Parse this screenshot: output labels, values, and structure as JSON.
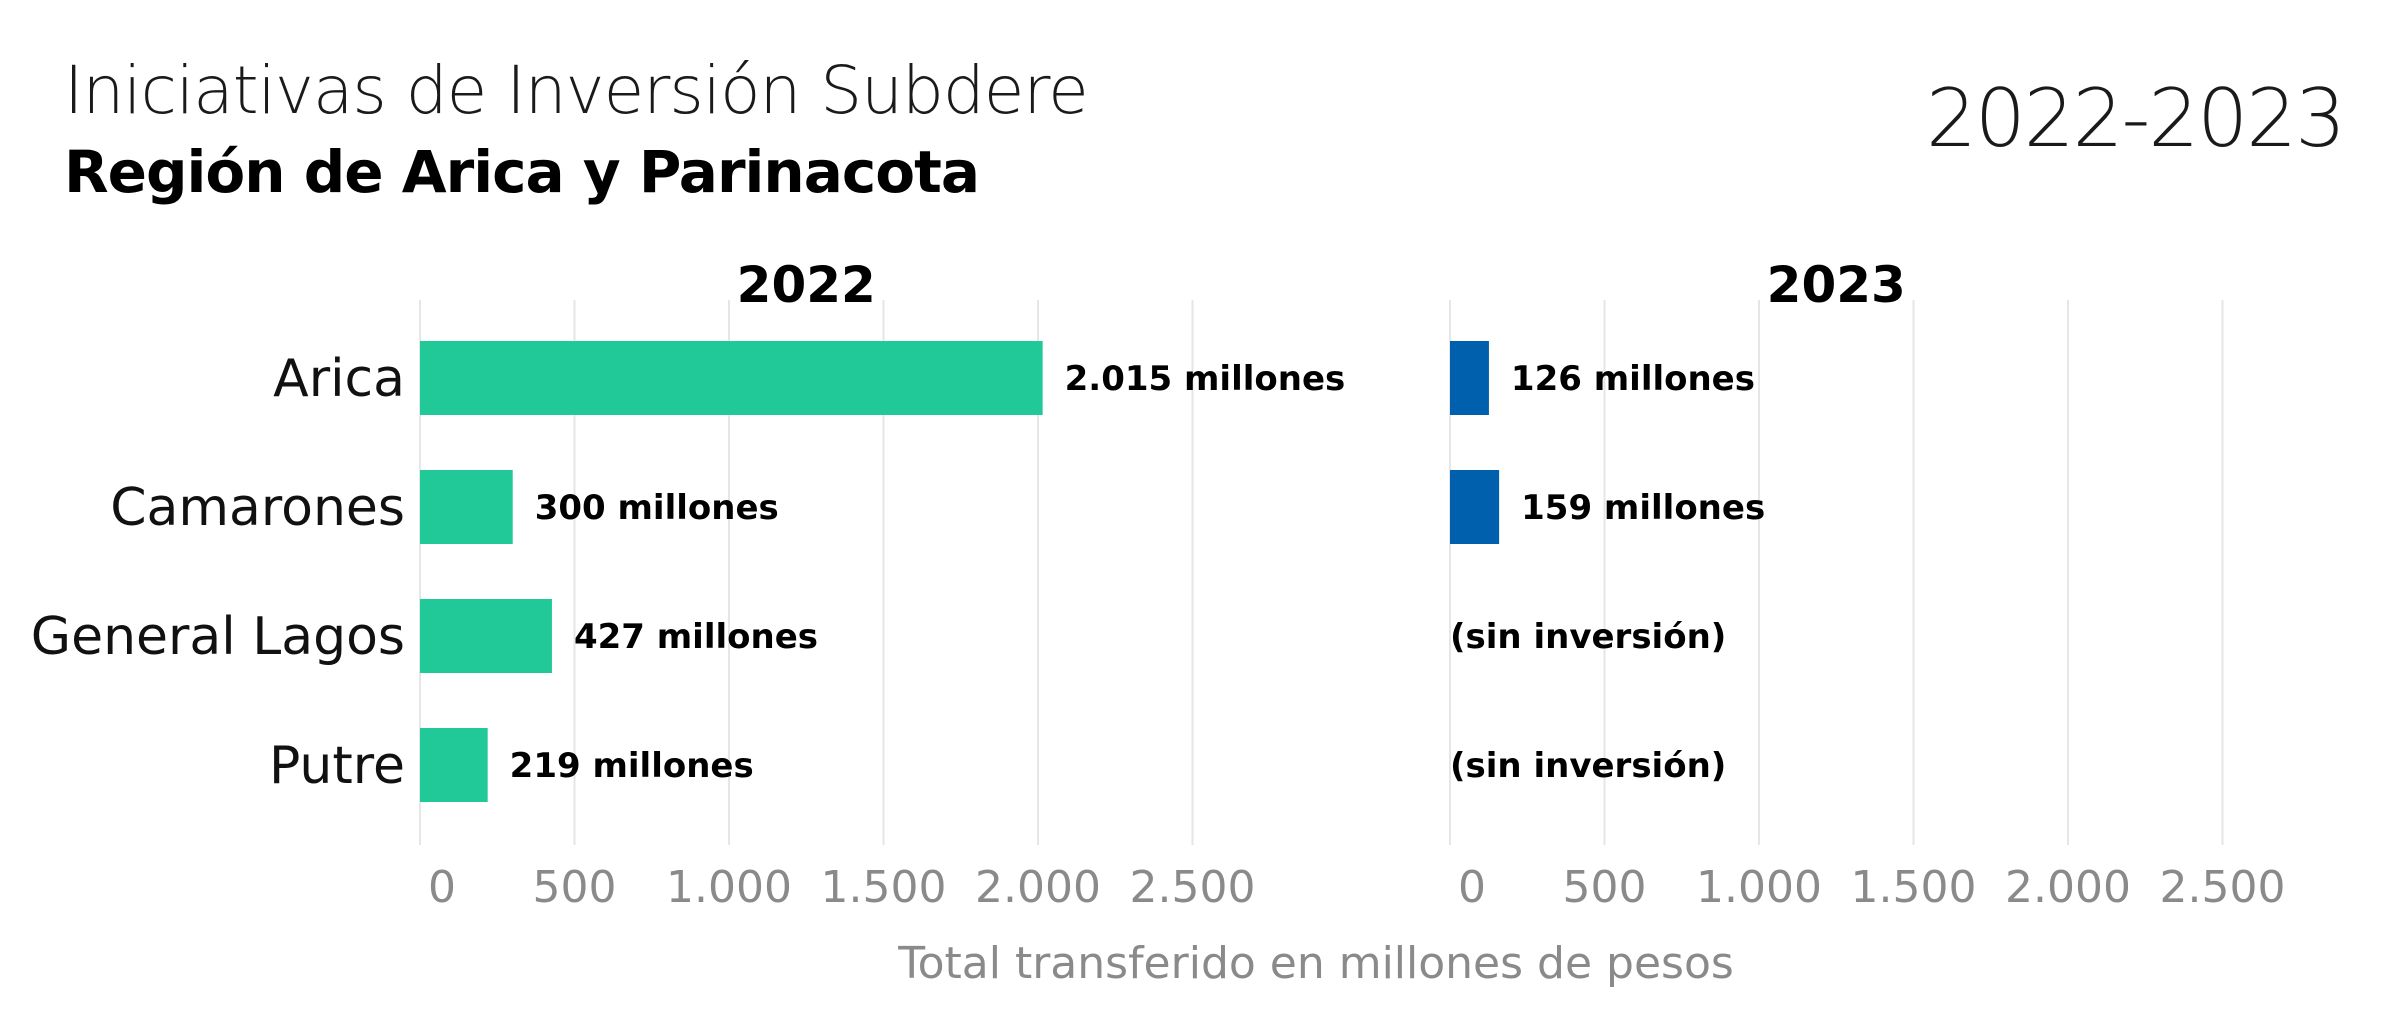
{
  "header": {
    "title": "Iniciativas de Inversión Subdere",
    "subtitle": "Región de Arica y Parinacota",
    "period": "2022-2023"
  },
  "chart_data": {
    "type": "bar",
    "orientation": "horizontal",
    "categories": [
      "Arica",
      "Camarones",
      "General Lagos",
      "Putre"
    ],
    "xlabel": "Total transferido en millones de pesos",
    "xlim": [
      0,
      2500
    ],
    "xticks": [
      0,
      500,
      1000,
      1500,
      2000,
      2500
    ],
    "xtick_labels": [
      "0",
      "500",
      "1.000",
      "1.500",
      "2.000",
      "2.500"
    ],
    "grid": true,
    "panels": [
      {
        "title": "2022",
        "color": "#20c997",
        "values": [
          2015,
          300,
          427,
          219
        ],
        "labels": [
          "2.015 millones",
          "300 millones",
          "427 millones",
          "219 millones"
        ]
      },
      {
        "title": "2023",
        "color": "#0060ad",
        "values": [
          126,
          159,
          0,
          0
        ],
        "labels": [
          "126 millones",
          "159 millones",
          "(sin inversión)",
          "(sin inversión)"
        ]
      }
    ]
  }
}
